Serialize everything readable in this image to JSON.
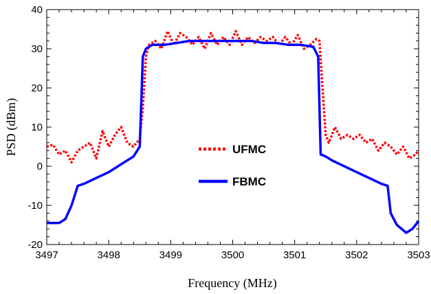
{
  "chart_data": {
    "type": "line",
    "xlabel": "Frequency (MHz)",
    "ylabel": "PSD (dBm)",
    "xlim": [
      3497,
      3503
    ],
    "ylim": [
      -20,
      40
    ],
    "x_ticks": [
      3497,
      3498,
      3499,
      3500,
      3501,
      3502,
      3503
    ],
    "y_ticks": [
      -20,
      -10,
      0,
      10,
      20,
      30,
      40
    ],
    "grid": false,
    "legend_position": "center",
    "series": [
      {
        "name": "UFMC",
        "color": "#ff0000",
        "style": "dotted",
        "x": [
          3497.0,
          3497.1,
          3497.2,
          3497.3,
          3497.4,
          3497.5,
          3497.6,
          3497.7,
          3497.8,
          3497.9,
          3498.0,
          3498.1,
          3498.2,
          3498.3,
          3498.4,
          3498.5,
          3498.55,
          3498.6,
          3498.65,
          3498.75,
          3498.85,
          3498.95,
          3499.05,
          3499.15,
          3499.25,
          3499.35,
          3499.45,
          3499.55,
          3499.65,
          3499.75,
          3499.85,
          3499.95,
          3500.05,
          3500.15,
          3500.25,
          3500.35,
          3500.45,
          3500.55,
          3500.65,
          3500.75,
          3500.85,
          3500.95,
          3501.05,
          3501.15,
          3501.25,
          3501.35,
          3501.4,
          3501.45,
          3501.5,
          3501.55,
          3501.65,
          3501.75,
          3501.85,
          3501.95,
          3502.05,
          3502.15,
          3502.25,
          3502.35,
          3502.45,
          3502.55,
          3502.65,
          3502.75,
          3502.85,
          3502.95,
          3503.0
        ],
        "y": [
          5,
          5.5,
          3,
          4,
          1,
          4,
          5,
          6,
          2,
          9,
          5,
          8,
          10,
          6,
          5,
          7,
          15,
          28,
          31,
          32,
          30,
          34.5,
          31,
          34,
          33,
          31,
          33,
          30,
          34,
          31,
          33,
          31,
          34.5,
          31,
          33,
          31.5,
          33,
          32,
          33,
          31,
          33,
          31,
          33.5,
          30,
          31,
          32.5,
          32,
          20,
          8,
          6,
          10,
          7,
          8,
          7,
          8,
          6,
          7,
          4,
          6,
          5,
          3,
          5,
          2,
          3,
          4
        ]
      },
      {
        "name": "FBMC",
        "color": "#0000ff",
        "style": "solid",
        "x": [
          3497.0,
          3497.1,
          3497.2,
          3497.3,
          3497.4,
          3497.5,
          3497.6,
          3497.8,
          3498.0,
          3498.2,
          3498.4,
          3498.5,
          3498.55,
          3498.6,
          3498.7,
          3498.9,
          3499.1,
          3499.3,
          3499.5,
          3499.7,
          3499.9,
          3500.1,
          3500.3,
          3500.5,
          3500.7,
          3500.9,
          3501.1,
          3501.3,
          3501.38,
          3501.42,
          3501.5,
          3501.6,
          3501.8,
          3502.0,
          3502.2,
          3502.4,
          3502.5,
          3502.55,
          3502.65,
          3502.8,
          3502.9,
          3503.0
        ],
        "y": [
          -14.5,
          -14.5,
          -14.5,
          -13.5,
          -10,
          -5,
          -4.5,
          -3,
          -1.5,
          0.5,
          2.5,
          5,
          28,
          30,
          31,
          31,
          31.5,
          32,
          32,
          32,
          32,
          32,
          32,
          31.5,
          31.5,
          31,
          31,
          30.5,
          28,
          3,
          2.5,
          1.5,
          0,
          -1.5,
          -3,
          -4.5,
          -5,
          -12,
          -15,
          -17,
          -16,
          -14
        ]
      }
    ]
  }
}
